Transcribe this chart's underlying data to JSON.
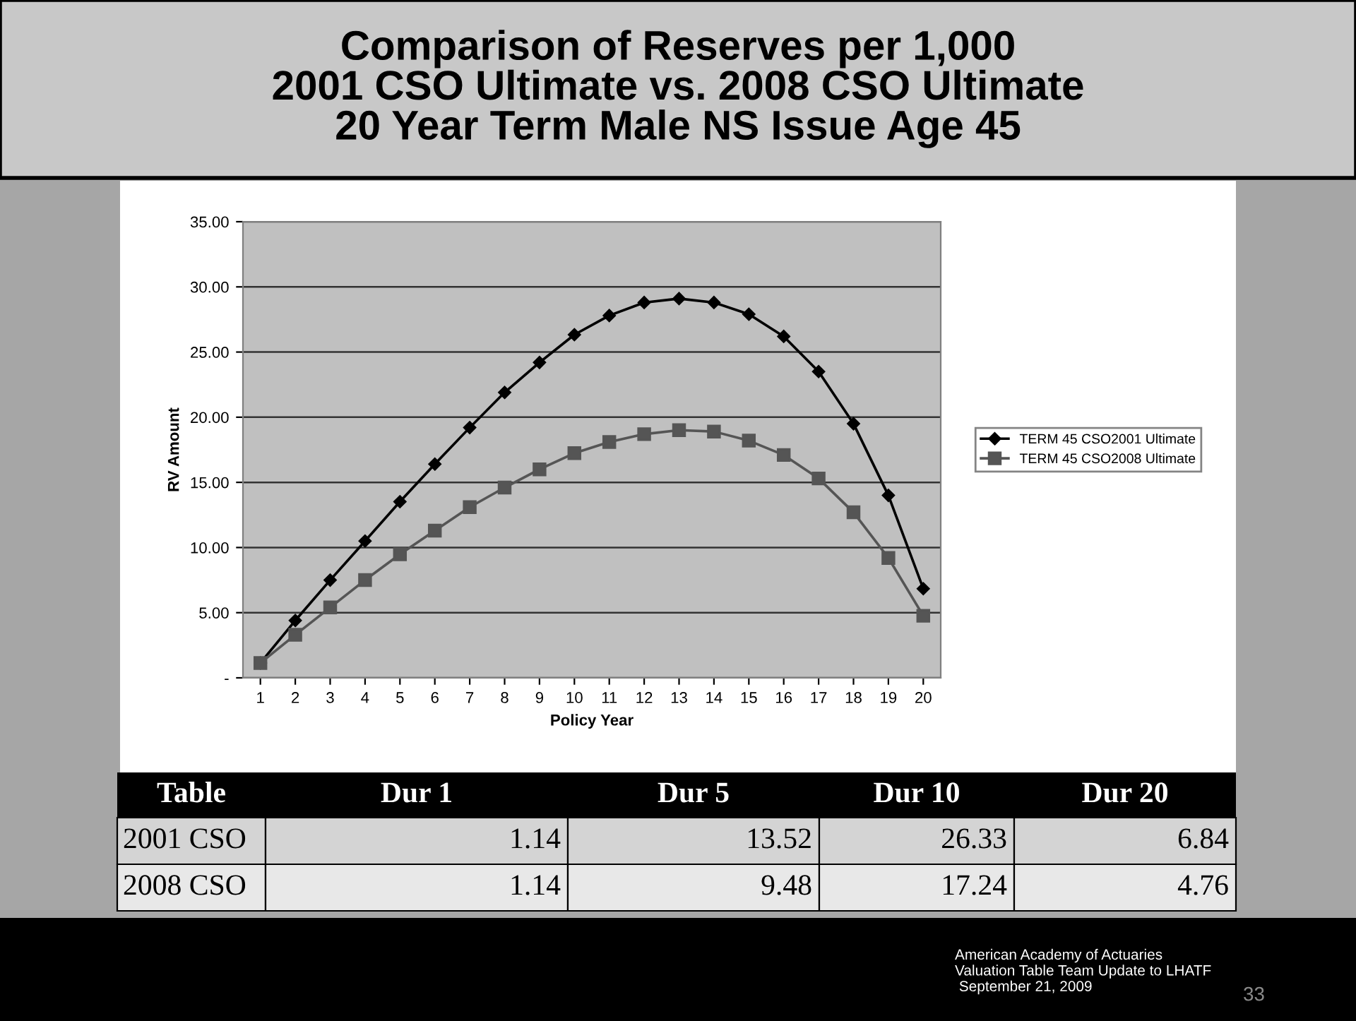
{
  "chart_data": {
    "type": "line",
    "title": "Comparison of Reserves per 1,000\n2001 CSO Ultimate vs. 2008 CSO Ultimate\n20 Year Term Male NS Issue Age 45",
    "xlabel": "Policy Year",
    "ylabel": "RV Amount",
    "categories": [
      "1",
      "2",
      "3",
      "4",
      "5",
      "6",
      "7",
      "8",
      "9",
      "10",
      "11",
      "12",
      "13",
      "14",
      "15",
      "16",
      "17",
      "18",
      "19",
      "20"
    ],
    "series": [
      {
        "name": "TERM 45 CSO2001 Ultimate",
        "color": "#000000",
        "marker": "diamond",
        "values": [
          1.14,
          4.4,
          7.5,
          10.5,
          13.52,
          16.4,
          19.2,
          21.9,
          24.2,
          26.33,
          27.8,
          28.8,
          29.1,
          28.8,
          27.9,
          26.2,
          23.5,
          19.5,
          14.0,
          6.84
        ]
      },
      {
        "name": "TERM 45 CSO2008 Ultimate",
        "color": "#555555",
        "marker": "square",
        "values": [
          1.14,
          3.3,
          5.4,
          7.5,
          9.48,
          11.3,
          13.1,
          14.6,
          16.0,
          17.24,
          18.1,
          18.7,
          19.0,
          18.9,
          18.2,
          17.1,
          15.3,
          12.7,
          9.2,
          4.76
        ]
      }
    ],
    "ylim": [
      0,
      35
    ],
    "yticks": [
      {
        "value": 0,
        "label": "-"
      },
      {
        "value": 5,
        "label": "5.00"
      },
      {
        "value": 10,
        "label": "10.00"
      },
      {
        "value": 15,
        "label": "15.00"
      },
      {
        "value": 20,
        "label": "20.00"
      },
      {
        "value": 25,
        "label": "25.00"
      },
      {
        "value": 30,
        "label": "30.00"
      },
      {
        "value": 35,
        "label": "35.00"
      }
    ],
    "grid": "y",
    "legend": "right",
    "line_style": "solid",
    "annotations": [
      "Table",
      "Dur 1",
      "Dur 5",
      "Dur 10",
      "Dur 20",
      "2001 CSO",
      "1.14",
      "13.52",
      "26.33",
      "6.84",
      "2008 CSO",
      "1.14",
      "9.48",
      "17.24",
      "4.76",
      "American Academy of Actuaries\nValuation Table Team Update to LHATF\n September 21, 2009",
      "33"
    ]
  }
}
